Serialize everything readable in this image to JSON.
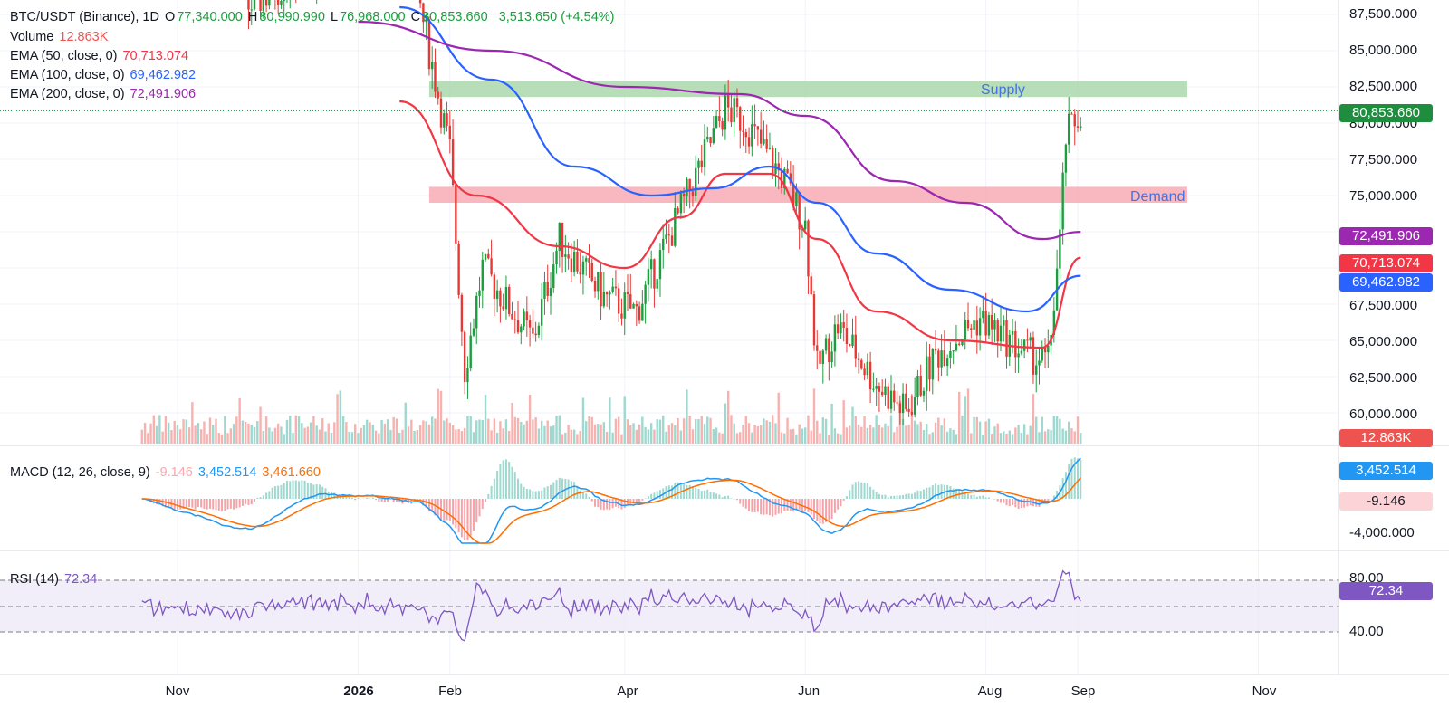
{
  "header": {
    "symbol": "BTC/USDT (Binance), 1D",
    "open_prefix": "O",
    "open": "77,340.000",
    "high_prefix": "H",
    "high": "80,990.990",
    "low_prefix": "L",
    "low": "76,968.000",
    "close_prefix": "C",
    "close": "80,853.660",
    "change": "3,513.650 (+4.54%)"
  },
  "indicators": {
    "volume": {
      "label": "Volume",
      "value": "12.863K"
    },
    "ema50": {
      "label": "EMA (50, close, 0)",
      "value": "70,713.074"
    },
    "ema100": {
      "label": "EMA (100, close, 0)",
      "value": "69,462.982"
    },
    "ema200": {
      "label": "EMA (200, close, 0)",
      "value": "72,491.906"
    },
    "macd": {
      "label": "MACD (12, 26, close, 9)",
      "hist": "-9.146",
      "macd": "3,452.514",
      "signal": "3,461.660"
    },
    "rsi": {
      "label": "RSI (14)",
      "value": "72.34"
    }
  },
  "zones": {
    "supply": "Supply",
    "demand": "Demand"
  },
  "price_axis": [
    "87,500.000",
    "85,000.000",
    "82,500.000",
    "80,000.000",
    "77,500.000",
    "75,000.000",
    "72,500.000",
    "70,000.000",
    "67,500.000",
    "65,000.000",
    "62,500.000",
    "60,000.000"
  ],
  "macd_axis": [
    "-4,000.000"
  ],
  "rsi_axis": [
    "80.00",
    "40.00"
  ],
  "time_axis": [
    {
      "label": "Nov",
      "bold": false
    },
    {
      "label": "2026",
      "bold": true
    },
    {
      "label": "Feb",
      "bold": false
    },
    {
      "label": "Apr",
      "bold": false
    },
    {
      "label": "Jun",
      "bold": false
    },
    {
      "label": "Aug",
      "bold": false
    },
    {
      "label": "Sep",
      "bold": false
    },
    {
      "label": "Nov",
      "bold": false
    }
  ],
  "badges": {
    "last_price": "80,853.660",
    "ema200": "72,491.906",
    "ema50": "70,713.074",
    "ema100": "69,462.982",
    "volume": "12.863K",
    "macd": "3,452.514",
    "hist": "-9.146",
    "rsi": "72.34"
  },
  "colors": {
    "up": "#26a69a",
    "down": "#ef5350",
    "candle_up": "#1b9e3e",
    "candle_down": "#e53935",
    "ema50": "#f23645",
    "ema100": "#2962ff",
    "ema200": "#9c27b0",
    "supply_zone": "#a5d6a7",
    "demand_zone": "#f8a5b0",
    "macd": "#2196f3",
    "signal": "#ff6d00",
    "rsi": "#7e57c2"
  },
  "chart_data": [
    {
      "type": "candlestick",
      "title": "BTC/USDT (Binance), 1D",
      "x_range": [
        "2025-09-20",
        "2026-11-30"
      ],
      "ylim": [
        58000,
        88500
      ],
      "last": {
        "open": 77340.0,
        "high": 80990.99,
        "low": 76968.0,
        "close": 80853.66,
        "change": 3513.65,
        "change_pct": 4.54
      },
      "series": [
        {
          "name": "EMA (50, close, 0)",
          "last": 70713.074,
          "points": [
            [
              "2026-01-15",
              81500
            ],
            [
              "2026-02-10",
              75000
            ],
            [
              "2026-03-10",
              71500
            ],
            [
              "2026-04-01",
              70000
            ],
            [
              "2026-04-20",
              73500
            ],
            [
              "2026-05-05",
              76500
            ],
            [
              "2026-05-20",
              76500
            ],
            [
              "2026-06-05",
              72000
            ],
            [
              "2026-06-25",
              67000
            ],
            [
              "2026-07-20",
              65000
            ],
            [
              "2026-08-20",
              64500
            ],
            [
              "2026-09-02",
              70713
            ]
          ]
        },
        {
          "name": "EMA (100, close, 0)",
          "last": 69462.982,
          "points": [
            [
              "2026-01-15",
              88000
            ],
            [
              "2026-02-15",
              83000
            ],
            [
              "2026-03-15",
              77000
            ],
            [
              "2026-04-10",
              75000
            ],
            [
              "2026-05-01",
              75500
            ],
            [
              "2026-05-20",
              77000
            ],
            [
              "2026-06-05",
              74500
            ],
            [
              "2026-06-25",
              71000
            ],
            [
              "2026-07-20",
              68500
            ],
            [
              "2026-08-15",
              67000
            ],
            [
              "2026-09-02",
              69463
            ]
          ]
        },
        {
          "name": "EMA (200, close, 0)",
          "last": 72491.906,
          "points": [
            [
              "2026-01-01",
              87000
            ],
            [
              "2026-02-15",
              85000
            ],
            [
              "2026-04-01",
              82500
            ],
            [
              "2026-05-10",
              82000
            ],
            [
              "2026-06-01",
              80500
            ],
            [
              "2026-07-01",
              76000
            ],
            [
              "2026-07-25",
              74500
            ],
            [
              "2026-08-20",
              72000
            ],
            [
              "2026-09-02",
              72492
            ]
          ]
        }
      ],
      "zones": [
        {
          "name": "Supply",
          "from": 81800,
          "to": 82900
        },
        {
          "name": "Demand",
          "from": 74500,
          "to": 75600
        }
      ]
    },
    {
      "type": "bar",
      "title": "Volume",
      "last": 12.863
    },
    {
      "type": "line",
      "title": "MACD (12, 26, close, 9)",
      "series": [
        {
          "name": "MACD",
          "last": 3452.514
        },
        {
          "name": "Signal",
          "last": 3461.66
        },
        {
          "name": "Histogram",
          "last": -9.146
        }
      ],
      "ylim": [
        -5200,
        4000
      ]
    },
    {
      "type": "line",
      "title": "RSI (14)",
      "series": [
        {
          "name": "RSI",
          "last": 72.34
        }
      ],
      "ylim": [
        20,
        90
      ],
      "bands": [
        70,
        50,
        30
      ]
    }
  ]
}
